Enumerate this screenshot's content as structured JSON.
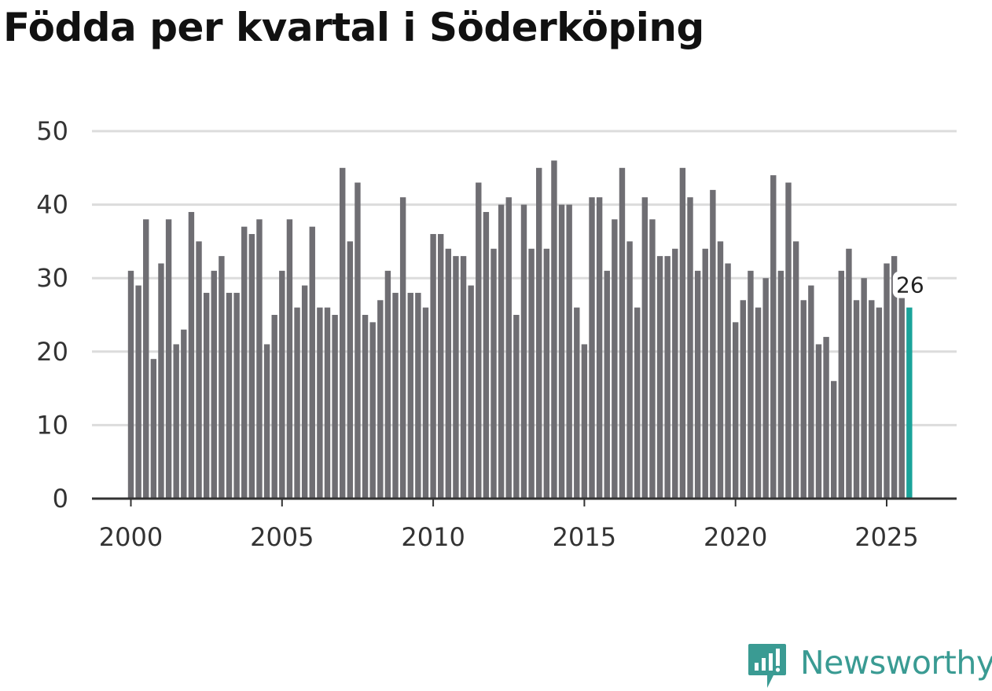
{
  "chart_data": {
    "type": "bar",
    "title": "Födda per kvartal i Söderköping",
    "xlabel": "",
    "ylabel": "",
    "ylim": [
      0,
      50
    ],
    "yticks": [
      0,
      10,
      20,
      30,
      40,
      50
    ],
    "xtick_labels": [
      "2000",
      "2005",
      "2010",
      "2015",
      "2020",
      "2025"
    ],
    "grid": true,
    "start_period": "2000 Q1",
    "values": [
      31,
      29,
      38,
      19,
      32,
      38,
      21,
      23,
      39,
      35,
      28,
      31,
      33,
      28,
      28,
      37,
      36,
      38,
      21,
      25,
      31,
      38,
      26,
      29,
      37,
      26,
      26,
      25,
      45,
      35,
      43,
      25,
      24,
      27,
      31,
      28,
      41,
      28,
      28,
      26,
      36,
      36,
      34,
      33,
      33,
      29,
      43,
      39,
      34,
      40,
      41,
      25,
      40,
      34,
      45,
      34,
      46,
      40,
      40,
      26,
      21,
      41,
      41,
      31,
      38,
      45,
      35,
      26,
      41,
      38,
      33,
      33,
      34,
      45,
      41,
      31,
      34,
      42,
      35,
      32,
      24,
      27,
      31,
      26,
      30,
      44,
      31,
      43,
      35,
      27,
      29,
      21,
      22,
      16,
      31,
      34,
      27,
      30,
      27,
      26,
      32,
      33,
      27.5,
      26
    ],
    "bar_color": "#6f6e73",
    "highlight_color": "#1aa39a",
    "last_value_label": "26"
  },
  "brand": {
    "name": "Newsworthy",
    "color": "#3a9b93"
  }
}
